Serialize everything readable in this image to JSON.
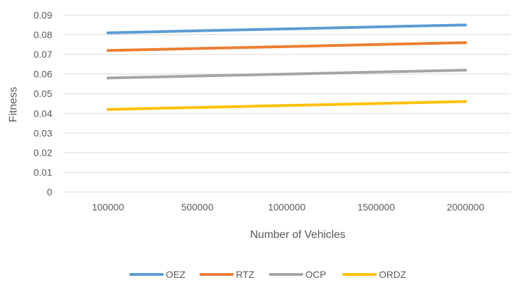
{
  "chart_data": {
    "type": "line",
    "title": "",
    "xlabel": "Number of Vehicles",
    "ylabel": "Fitness",
    "categories": [
      "100000",
      "500000",
      "1000000",
      "1500000",
      "2000000"
    ],
    "y_ticks": [
      "0",
      "0.01",
      "0.02",
      "0.03",
      "0.04",
      "0.05",
      "0.06",
      "0.07",
      "0.08",
      "0.09"
    ],
    "ylim": [
      0,
      0.09
    ],
    "grid": "horizontal",
    "legend_position": "bottom",
    "series": [
      {
        "name": "OEZ",
        "color": "#5B9BD5",
        "values": [
          0.081,
          0.082,
          0.083,
          0.084,
          0.085
        ]
      },
      {
        "name": "RTZ",
        "color": "#ED7D31",
        "values": [
          0.072,
          0.073,
          0.074,
          0.075,
          0.076
        ]
      },
      {
        "name": "OCP",
        "color": "#A5A5A5",
        "values": [
          0.058,
          0.059,
          0.06,
          0.061,
          0.062
        ]
      },
      {
        "name": "ORDZ",
        "color": "#FFC000",
        "values": [
          0.042,
          0.043,
          0.044,
          0.045,
          0.046
        ]
      }
    ]
  }
}
